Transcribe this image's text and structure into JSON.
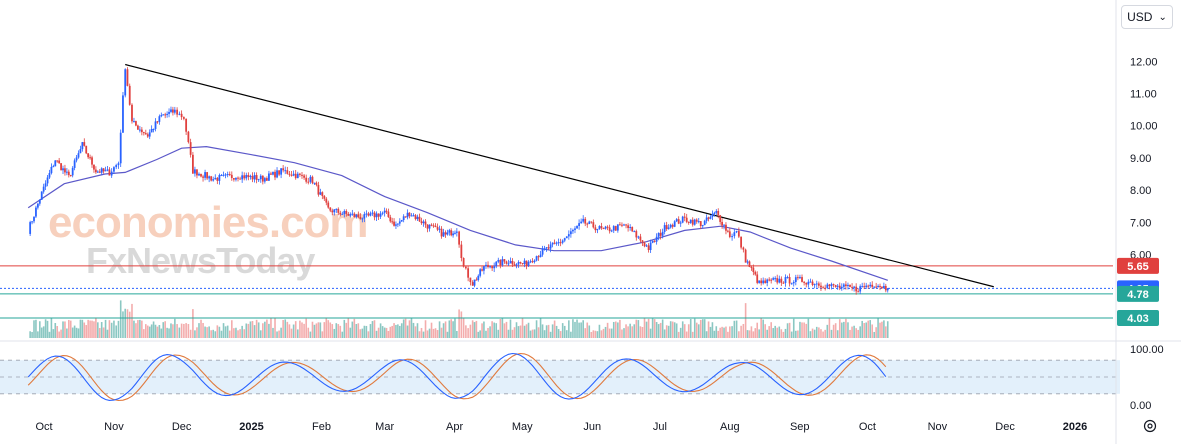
{
  "header": {
    "currency": "USD"
  },
  "watermark": {
    "line1": "economies.com",
    "line2": "FxNewsToday"
  },
  "chart_data": {
    "type": "candlestick",
    "x_ticks": [
      "Oct",
      "Nov",
      "Dec",
      "2025",
      "Feb",
      "Mar",
      "Apr",
      "May",
      "Jun",
      "Jul",
      "Aug",
      "Sep",
      "Oct",
      "Nov",
      "Dec",
      "2026"
    ],
    "y_ticks": [
      "12.00",
      "11.00",
      "10.00",
      "9.00",
      "8.00",
      "7.00",
      "6.00"
    ],
    "ylim": [
      4.03,
      12.35
    ],
    "price_path": [
      [
        "2024-09-24",
        6.75
      ],
      [
        "2024-09-30",
        7.9
      ],
      [
        "2024-10-06",
        8.95
      ],
      [
        "2024-10-12",
        8.4
      ],
      [
        "2024-10-18",
        9.4
      ],
      [
        "2024-10-24",
        8.6
      ],
      [
        "2024-10-30",
        8.55
      ],
      [
        "2024-11-03",
        8.85
      ],
      [
        "2024-11-06",
        11.85
      ],
      [
        "2024-11-09",
        10.1
      ],
      [
        "2024-11-16",
        9.7
      ],
      [
        "2024-11-22",
        10.3
      ],
      [
        "2024-11-28",
        10.45
      ],
      [
        "2024-12-02",
        10.25
      ],
      [
        "2024-12-06",
        8.6
      ],
      [
        "2024-12-15",
        8.35
      ],
      [
        "2024-12-26",
        8.45
      ],
      [
        "2025-01-06",
        8.35
      ],
      [
        "2025-01-15",
        8.6
      ],
      [
        "2025-01-28",
        8.3
      ],
      [
        "2025-02-04",
        7.4
      ],
      [
        "2025-02-12",
        7.25
      ],
      [
        "2025-02-20",
        7.15
      ],
      [
        "2025-03-01",
        7.3
      ],
      [
        "2025-03-06",
        6.9
      ],
      [
        "2025-03-12",
        7.3
      ],
      [
        "2025-03-20",
        6.9
      ],
      [
        "2025-03-28",
        6.6
      ],
      [
        "2025-04-02",
        6.8
      ],
      [
        "2025-04-05",
        5.6
      ],
      [
        "2025-04-09",
        5.1
      ],
      [
        "2025-04-14",
        5.6
      ],
      [
        "2025-04-24",
        5.8
      ],
      [
        "2025-05-02",
        5.7
      ],
      [
        "2025-05-10",
        6.1
      ],
      [
        "2025-05-18",
        6.4
      ],
      [
        "2025-05-28",
        7.0
      ],
      [
        "2025-06-06",
        6.75
      ],
      [
        "2025-06-16",
        6.9
      ],
      [
        "2025-06-26",
        6.2
      ],
      [
        "2025-07-04",
        6.9
      ],
      [
        "2025-07-12",
        7.1
      ],
      [
        "2025-07-20",
        6.95
      ],
      [
        "2025-07-26",
        7.3
      ],
      [
        "2025-08-01",
        6.6
      ],
      [
        "2025-08-04",
        6.7
      ],
      [
        "2025-08-08",
        5.85
      ],
      [
        "2025-08-14",
        5.1
      ],
      [
        "2025-08-22",
        5.2
      ],
      [
        "2025-09-02",
        5.2
      ],
      [
        "2025-09-16",
        5.0
      ],
      [
        "2025-09-26",
        4.93
      ],
      [
        "2025-10-04",
        5.1
      ],
      [
        "2025-10-10",
        4.95
      ]
    ],
    "moving_average": [
      [
        "2024-09-24",
        7.45
      ],
      [
        "2024-10-10",
        8.2
      ],
      [
        "2024-10-28",
        8.5
      ],
      [
        "2024-11-06",
        8.55
      ],
      [
        "2024-11-20",
        8.95
      ],
      [
        "2024-12-01",
        9.3
      ],
      [
        "2024-12-12",
        9.35
      ],
      [
        "2025-01-01",
        9.1
      ],
      [
        "2025-01-20",
        8.85
      ],
      [
        "2025-02-10",
        8.45
      ],
      [
        "2025-03-01",
        7.8
      ],
      [
        "2025-03-20",
        7.3
      ],
      [
        "2025-04-08",
        6.75
      ],
      [
        "2025-04-28",
        6.3
      ],
      [
        "2025-05-15",
        6.12
      ],
      [
        "2025-06-05",
        6.12
      ],
      [
        "2025-06-25",
        6.4
      ],
      [
        "2025-07-12",
        6.75
      ],
      [
        "2025-07-28",
        6.88
      ],
      [
        "2025-08-10",
        6.7
      ],
      [
        "2025-08-28",
        6.2
      ],
      [
        "2025-09-15",
        5.8
      ],
      [
        "2025-10-10",
        5.2
      ]
    ],
    "trendline": [
      [
        "2024-11-06",
        11.9
      ],
      [
        "2025-11-26",
        5.0
      ]
    ],
    "price_levels": [
      {
        "label": "5.65",
        "value": 5.65,
        "color": "#e0403e"
      },
      {
        "label": "4.95",
        "value": 4.95,
        "color": "#2962ff"
      },
      {
        "label": "4.78",
        "value": 4.78,
        "color": "#26a69a"
      },
      {
        "label": "4.03",
        "value": 4.03,
        "color": "#26a69a"
      }
    ],
    "oscillator": {
      "ticks": [
        "100.00",
        "0.00"
      ],
      "ylim": [
        0,
        100
      ],
      "upper_band": 80,
      "lower_band": 20,
      "middle": 50
    },
    "colors": {
      "up": "#2962ff",
      "down": "#e0403e",
      "ma": "#5b58c9",
      "trendline": "#000000",
      "k_line": "#2962ff",
      "d_line": "#e07a3e",
      "band_fill": "#e3f0fb"
    }
  }
}
